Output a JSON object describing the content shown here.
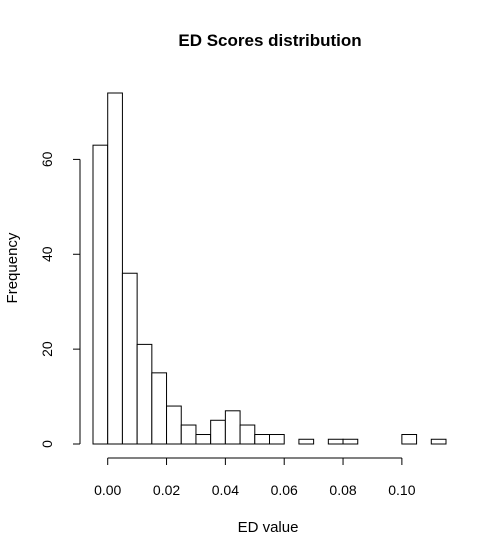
{
  "chart_data": {
    "type": "bar",
    "title": "ED Scores distribution",
    "xlabel": "ED value",
    "ylabel": "Frequency",
    "bin_width": 0.005,
    "bin_start": -0.005,
    "values": [
      63,
      74,
      36,
      21,
      15,
      8,
      4,
      2,
      5,
      7,
      4,
      2,
      2,
      0,
      1,
      0,
      1,
      1,
      0,
      0,
      0,
      2,
      0,
      1
    ],
    "xlim": [
      -0.005,
      0.115
    ],
    "ylim": [
      0,
      74
    ],
    "x_ticks": [
      0.0,
      0.02,
      0.04,
      0.06,
      0.08,
      0.1
    ],
    "x_tick_labels": [
      "0.00",
      "0.02",
      "0.04",
      "0.06",
      "0.08",
      "0.10"
    ],
    "y_ticks": [
      0,
      20,
      40,
      60
    ],
    "y_tick_labels": [
      "0",
      "20",
      "40",
      "60"
    ],
    "grid": false,
    "legend": "none"
  }
}
